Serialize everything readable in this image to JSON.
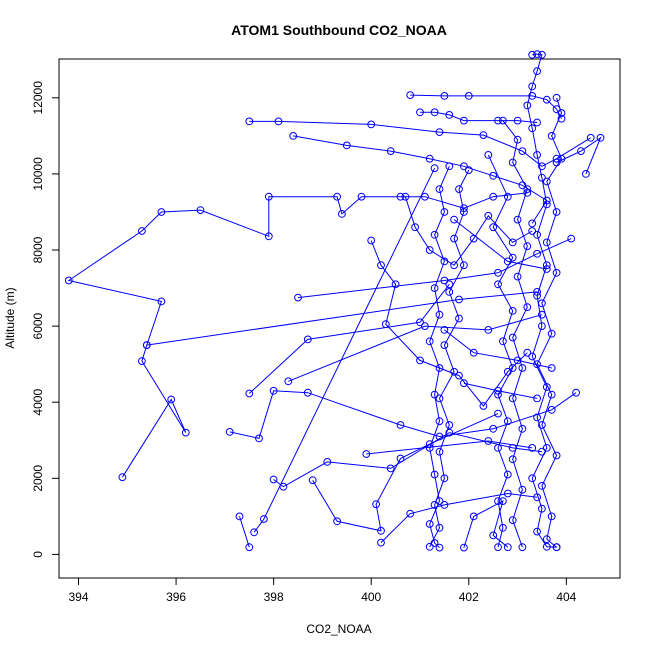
{
  "chart_data": {
    "type": "line",
    "title": "ATOM1 Southbound CO2_NOAA",
    "xlabel": "CO2_NOAA",
    "ylabel": "Altitude (m)",
    "xlim": [
      393.6,
      405.1
    ],
    "ylim": [
      -620,
      13020
    ],
    "xticks": [
      394,
      396,
      398,
      400,
      402,
      404
    ],
    "yticks": [
      0,
      2000,
      4000,
      6000,
      8000,
      10000,
      12000
    ],
    "grid": false,
    "legend": "none",
    "color": "#0000ff",
    "marker": "open-circle",
    "series": [
      {
        "points": [
          [
            394.9,
            2030
          ],
          [
            395.9,
            4070
          ],
          [
            396.2,
            3200
          ],
          [
            395.3,
            5080
          ],
          [
            395.4,
            5500
          ],
          [
            395.7,
            6650
          ],
          [
            393.8,
            7200
          ],
          [
            395.3,
            8500
          ],
          [
            395.7,
            9000
          ],
          [
            396.5,
            9050
          ],
          [
            397.9,
            8360
          ],
          [
            397.9,
            9400
          ],
          [
            399.3,
            9400
          ],
          [
            399.4,
            8950
          ],
          [
            399.8,
            9400
          ],
          [
            400.6,
            9400
          ],
          [
            401.1,
            9400
          ],
          [
            401.9,
            9100
          ],
          [
            402.5,
            9400
          ],
          [
            403.2,
            9500
          ]
        ]
      },
      {
        "points": [
          [
            397.5,
            11380
          ],
          [
            398.1,
            11380
          ],
          [
            400.0,
            11300
          ],
          [
            401.4,
            11100
          ],
          [
            402.3,
            11020
          ],
          [
            403.1,
            10600
          ],
          [
            403.5,
            10200
          ],
          [
            403.8,
            10400
          ],
          [
            404.5,
            10950
          ]
        ]
      },
      {
        "points": [
          [
            398.4,
            11000
          ],
          [
            399.5,
            10750
          ],
          [
            400.4,
            10600
          ],
          [
            401.2,
            10400
          ],
          [
            401.9,
            10200
          ],
          [
            402.5,
            9950
          ],
          [
            403.1,
            9700
          ],
          [
            403.6,
            9300
          ],
          [
            403.3,
            8700
          ]
        ]
      },
      {
        "points": [
          [
            400.8,
            12070
          ],
          [
            401.5,
            12050
          ],
          [
            402.0,
            12050
          ],
          [
            403.3,
            12050
          ],
          [
            403.6,
            11950
          ],
          [
            403.8,
            11700
          ],
          [
            403.9,
            11450
          ]
        ]
      },
      {
        "points": [
          [
            401.0,
            11620
          ],
          [
            401.3,
            11620
          ],
          [
            401.6,
            11550
          ],
          [
            401.9,
            11400
          ],
          [
            402.6,
            11400
          ],
          [
            403.0,
            11400
          ],
          [
            403.4,
            11350
          ]
        ]
      },
      {
        "points": [
          [
            403.3,
            13130
          ],
          [
            403.4,
            13150
          ],
          [
            403.5,
            13130
          ],
          [
            403.4,
            12700
          ],
          [
            403.3,
            12300
          ],
          [
            403.2,
            11800
          ],
          [
            403.3,
            11200
          ],
          [
            403.4,
            10500
          ],
          [
            403.5,
            9900
          ],
          [
            403.6,
            9200
          ],
          [
            403.4,
            8400
          ],
          [
            403.6,
            7600
          ],
          [
            403.4,
            6800
          ],
          [
            403.5,
            6000
          ],
          [
            403.3,
            5200
          ],
          [
            403.6,
            4400
          ],
          [
            403.4,
            3600
          ],
          [
            403.6,
            2800
          ],
          [
            403.3,
            2000
          ],
          [
            403.5,
            1200
          ],
          [
            403.4,
            600
          ],
          [
            403.6,
            200
          ],
          [
            403.8,
            190
          ]
        ]
      },
      {
        "points": [
          [
            403.8,
            12000
          ],
          [
            403.9,
            11600
          ],
          [
            403.7,
            11000
          ],
          [
            403.9,
            10400
          ],
          [
            403.6,
            9800
          ],
          [
            403.8,
            9000
          ],
          [
            403.6,
            8200
          ],
          [
            403.8,
            7400
          ],
          [
            403.5,
            6600
          ],
          [
            403.7,
            5800
          ],
          [
            403.4,
            5000
          ],
          [
            403.7,
            4200
          ],
          [
            403.5,
            3400
          ],
          [
            403.8,
            2600
          ],
          [
            403.5,
            1800
          ],
          [
            403.7,
            1000
          ],
          [
            403.6,
            400
          ],
          [
            403.8,
            190
          ]
        ]
      },
      {
        "points": [
          [
            401.6,
            10200
          ],
          [
            401.4,
            9600
          ],
          [
            401.5,
            9000
          ],
          [
            401.3,
            8400
          ],
          [
            401.5,
            7700
          ],
          [
            401.3,
            7000
          ],
          [
            401.4,
            6300
          ],
          [
            401.2,
            5600
          ],
          [
            401.4,
            4900
          ],
          [
            401.3,
            4200
          ],
          [
            401.4,
            3500
          ],
          [
            401.2,
            2800
          ],
          [
            401.3,
            2100
          ],
          [
            401.4,
            1400
          ],
          [
            401.2,
            800
          ],
          [
            401.3,
            300
          ],
          [
            401.4,
            180
          ]
        ]
      },
      {
        "points": [
          [
            402.0,
            10100
          ],
          [
            401.8,
            9600
          ],
          [
            401.9,
            9000
          ],
          [
            401.7,
            8300
          ],
          [
            401.9,
            7600
          ],
          [
            401.6,
            6900
          ],
          [
            401.8,
            6200
          ],
          [
            401.5,
            5500
          ],
          [
            401.7,
            4800
          ],
          [
            401.4,
            4100
          ],
          [
            401.6,
            3400
          ],
          [
            401.4,
            2700
          ],
          [
            401.5,
            2000
          ],
          [
            401.3,
            1300
          ],
          [
            401.4,
            700
          ],
          [
            401.2,
            200
          ]
        ]
      },
      {
        "points": [
          [
            398.5,
            6750
          ],
          [
            401.5,
            7200
          ],
          [
            402.6,
            7400
          ],
          [
            403.4,
            7900
          ],
          [
            404.1,
            8300
          ]
        ]
      },
      {
        "points": [
          [
            395.4,
            5500
          ],
          [
            401.8,
            6700
          ],
          [
            403.4,
            6900
          ]
        ]
      },
      {
        "points": [
          [
            398.3,
            4550
          ],
          [
            401.1,
            6000
          ],
          [
            402.4,
            5900
          ],
          [
            403.5,
            6300
          ]
        ]
      },
      {
        "points": [
          [
            397.5,
            4230
          ],
          [
            398.7,
            5650
          ],
          [
            401.0,
            6100
          ],
          [
            401.6,
            7100
          ]
        ]
      },
      {
        "points": [
          [
            397.3,
            1000
          ],
          [
            397.5,
            190
          ]
        ]
      },
      {
        "points": [
          [
            397.6,
            580
          ],
          [
            397.8,
            930
          ],
          [
            401.3,
            10150
          ]
        ]
      },
      {
        "points": [
          [
            397.1,
            3220
          ],
          [
            397.7,
            3050
          ],
          [
            398.0,
            4300
          ],
          [
            398.7,
            4250
          ],
          [
            400.6,
            3400
          ],
          [
            401.4,
            3100
          ],
          [
            402.5,
            3300
          ],
          [
            403.7,
            3800
          ],
          [
            404.2,
            4250
          ]
        ]
      },
      {
        "points": [
          [
            398.0,
            1970
          ],
          [
            398.2,
            1780
          ],
          [
            399.1,
            2430
          ],
          [
            400.4,
            2260
          ],
          [
            401.6,
            3200
          ],
          [
            402.9,
            2800
          ],
          [
            403.5,
            2700
          ]
        ]
      },
      {
        "points": [
          [
            398.8,
            1950
          ],
          [
            399.3,
            870
          ],
          [
            400.2,
            620
          ],
          [
            400.1,
            1320
          ],
          [
            400.6,
            2520
          ],
          [
            401.2,
            2900
          ],
          [
            402.6,
            3700
          ]
        ]
      },
      {
        "points": [
          [
            399.9,
            2640
          ],
          [
            402.4,
            2980
          ],
          [
            403.3,
            2800
          ]
        ]
      },
      {
        "points": [
          [
            400.2,
            310
          ],
          [
            400.8,
            1070
          ],
          [
            401.5,
            1300
          ],
          [
            402.8,
            1600
          ],
          [
            403.4,
            1500
          ]
        ]
      },
      {
        "points": [
          [
            401.9,
            180
          ],
          [
            402.1,
            1000
          ],
          [
            402.7,
            1400
          ],
          [
            402.5,
            500
          ],
          [
            402.8,
            190
          ]
        ]
      },
      {
        "points": [
          [
            400.0,
            8250
          ],
          [
            400.2,
            7600
          ],
          [
            400.5,
            7100
          ],
          [
            400.3,
            6050
          ],
          [
            401.0,
            5100
          ],
          [
            401.8,
            4700
          ],
          [
            402.3,
            3900
          ],
          [
            402.8,
            4800
          ],
          [
            403.2,
            5300
          ]
        ]
      },
      {
        "points": [
          [
            400.7,
            9400
          ],
          [
            400.9,
            8600
          ],
          [
            401.2,
            8000
          ],
          [
            401.7,
            7600
          ],
          [
            402.1,
            8300
          ],
          [
            402.4,
            8900
          ],
          [
            402.9,
            8200
          ],
          [
            403.3,
            8500
          ]
        ]
      },
      {
        "points": [
          [
            402.4,
            10500
          ],
          [
            402.8,
            9400
          ],
          [
            402.5,
            8600
          ],
          [
            402.9,
            7800
          ],
          [
            402.6,
            7100
          ],
          [
            402.9,
            6400
          ],
          [
            402.7,
            5600
          ],
          [
            402.9,
            4900
          ],
          [
            402.6,
            4200
          ],
          [
            402.8,
            3500
          ],
          [
            402.6,
            2800
          ],
          [
            402.8,
            2100
          ],
          [
            402.6,
            1400
          ],
          [
            402.7,
            700
          ],
          [
            402.6,
            190
          ]
        ]
      },
      {
        "points": [
          [
            402.7,
            11400
          ],
          [
            403.0,
            10900
          ],
          [
            402.9,
            10300
          ],
          [
            403.2,
            9600
          ],
          [
            403.0,
            8800
          ],
          [
            403.2,
            8100
          ],
          [
            403.0,
            7300
          ],
          [
            403.2,
            6500
          ],
          [
            402.9,
            5700
          ],
          [
            403.1,
            4900
          ],
          [
            402.9,
            4100
          ],
          [
            403.1,
            3300
          ],
          [
            402.9,
            2500
          ],
          [
            403.1,
            1700
          ],
          [
            402.9,
            900
          ],
          [
            403.1,
            190
          ]
        ]
      },
      {
        "points": [
          [
            401.7,
            8800
          ],
          [
            402.8,
            7700
          ],
          [
            403.6,
            7500
          ]
        ]
      },
      {
        "points": [
          [
            401.5,
            5900
          ],
          [
            402.1,
            5300
          ],
          [
            403.0,
            5100
          ],
          [
            403.7,
            4900
          ]
        ]
      },
      {
        "points": [
          [
            401.9,
            4500
          ],
          [
            402.6,
            4300
          ],
          [
            403.4,
            4100
          ]
        ]
      },
      {
        "points": [
          [
            403.8,
            10300
          ],
          [
            404.3,
            10600
          ],
          [
            404.7,
            10950
          ],
          [
            404.4,
            10000
          ]
        ]
      }
    ]
  }
}
